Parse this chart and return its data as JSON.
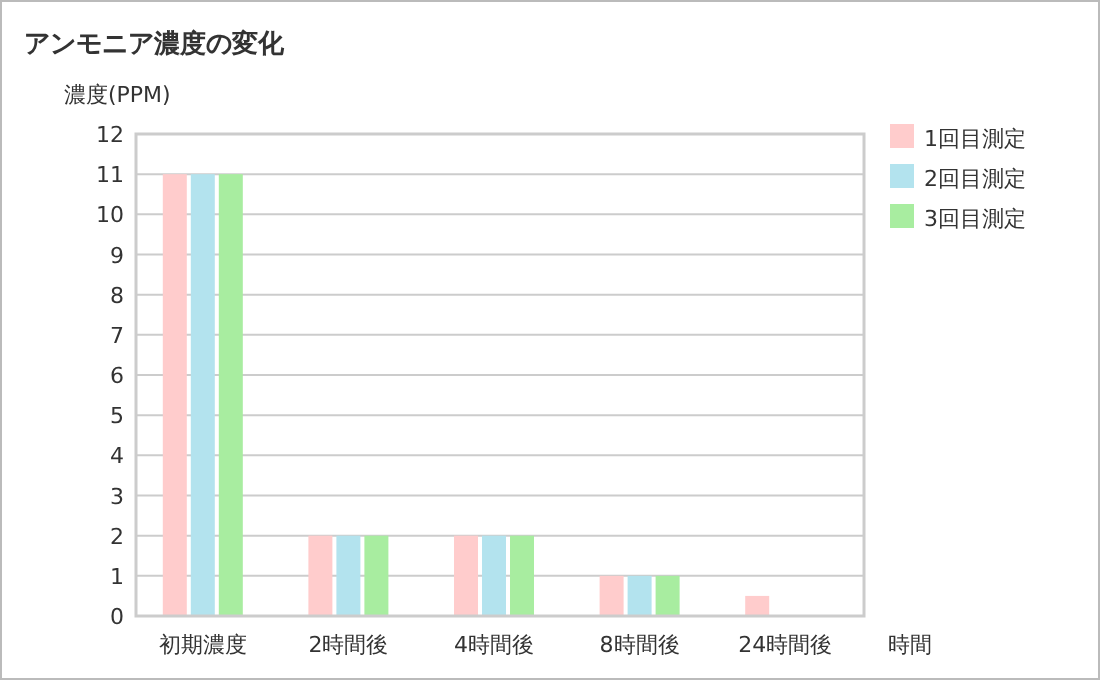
{
  "chart_data": {
    "type": "bar",
    "title": "アンモニア濃度の変化",
    "ylabel": "濃度(PPM)",
    "xlabel": "時間",
    "categories": [
      "初期濃度",
      "2時間後",
      "4時間後",
      "8時間後",
      "24時間後"
    ],
    "series": [
      {
        "name": "1回目測定",
        "color": "#ffcccc",
        "values": [
          11,
          2,
          2,
          1,
          0.5
        ]
      },
      {
        "name": "2回目測定",
        "color": "#b3e3ee",
        "values": [
          11,
          2,
          2,
          1,
          0
        ]
      },
      {
        "name": "3回目測定",
        "color": "#a8eda0",
        "values": [
          11,
          2,
          2,
          1,
          0
        ]
      }
    ],
    "ylim": [
      0,
      12
    ],
    "yticks": [
      0,
      1,
      2,
      3,
      4,
      5,
      6,
      7,
      8,
      9,
      10,
      11,
      12
    ],
    "grid": "y",
    "legend": "right"
  }
}
